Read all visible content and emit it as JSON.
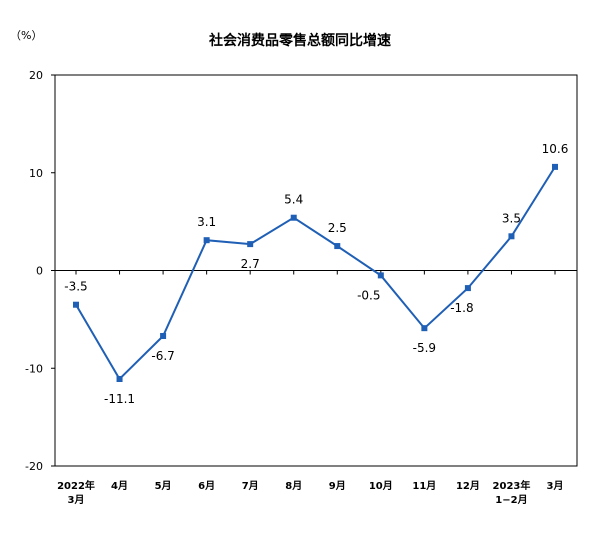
{
  "chart_data": {
    "type": "line",
    "title": "社会消费品零售总额同比增速",
    "unit_label": "（%）",
    "xlabel": "",
    "ylabel": "",
    "ylim": [
      -20,
      20
    ],
    "yticks": [
      "20",
      "10",
      "0",
      "-10",
      "-20"
    ],
    "grid": false,
    "categories": [
      {
        "line1": "2022年",
        "line2": "3月"
      },
      {
        "line1": "4月",
        "line2": ""
      },
      {
        "line1": "5月",
        "line2": ""
      },
      {
        "line1": "6月",
        "line2": ""
      },
      {
        "line1": "7月",
        "line2": ""
      },
      {
        "line1": "8月",
        "line2": ""
      },
      {
        "line1": "9月",
        "line2": ""
      },
      {
        "line1": "10月",
        "line2": ""
      },
      {
        "line1": "11月",
        "line2": ""
      },
      {
        "line1": "12月",
        "line2": ""
      },
      {
        "line1": "2023年",
        "line2": "1−2月"
      },
      {
        "line1": "3月",
        "line2": ""
      }
    ],
    "series": [
      {
        "values": [
          -3.5,
          -11.1,
          -6.7,
          3.1,
          2.7,
          5.4,
          2.5,
          -0.5,
          -5.9,
          -1.8,
          3.5,
          10.6
        ],
        "labels": [
          "-3.5",
          "-11.1",
          "-6.7",
          "3.1",
          "2.7",
          "5.4",
          "2.5",
          "-0.5",
          "-5.9",
          "-1.8",
          "3.5",
          "10.6"
        ],
        "color": "#1f5fb5"
      }
    ]
  }
}
